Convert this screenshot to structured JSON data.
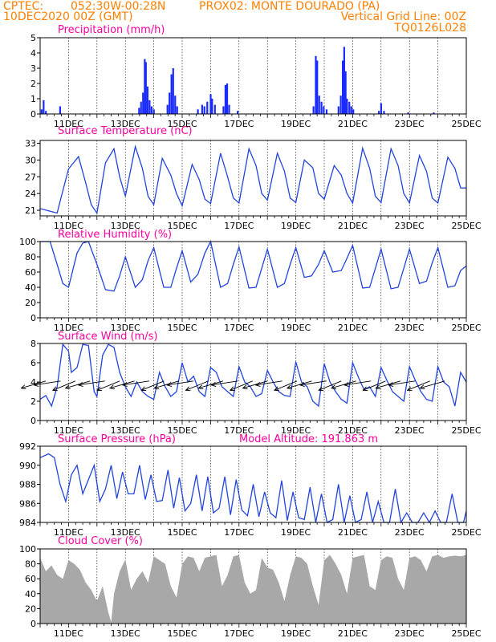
{
  "header": {
    "source": "CPTEC:",
    "location": "052:30W-00:28N",
    "station": "PROX02: MONTE DOURADO (PA)",
    "run": "10DEC2020 00Z (GMT)",
    "grid_note": "Vertical Grid Line: 00Z",
    "code": "TQ0126L028"
  },
  "colors": {
    "header": "#ff8000",
    "title": "#ff00a0",
    "line": "#2244dd",
    "bar": "#1a2bff",
    "cloud": "#a8a8a8",
    "wind_vector": "#000000"
  },
  "x_axis": {
    "tick_labels": [
      "11DEC",
      "13DEC",
      "15DEC",
      "17DEC",
      "19DEC",
      "21DEC",
      "23DEC",
      "25DEC"
    ],
    "tick_days": [
      1,
      3,
      5,
      7,
      9,
      11,
      13,
      15
    ],
    "range_days": [
      0,
      15
    ]
  },
  "chart_data": [
    {
      "type": "bar",
      "title": "Precipitation (mm/h)",
      "ylim": [
        0,
        5
      ],
      "yticks": [
        "0",
        "1",
        "2",
        "3",
        "4",
        "5"
      ],
      "bars": [
        {
          "x": 0.05,
          "y": 0.3
        },
        {
          "x": 0.12,
          "y": 0.9
        },
        {
          "x": 0.2,
          "y": 0.2
        },
        {
          "x": 0.7,
          "y": 0.5
        },
        {
          "x": 3.48,
          "y": 0.4
        },
        {
          "x": 3.55,
          "y": 0.8
        },
        {
          "x": 3.62,
          "y": 1.4
        },
        {
          "x": 3.68,
          "y": 3.6
        },
        {
          "x": 3.72,
          "y": 3.4
        },
        {
          "x": 3.78,
          "y": 1.8
        },
        {
          "x": 3.85,
          "y": 0.9
        },
        {
          "x": 3.92,
          "y": 0.5
        },
        {
          "x": 4.0,
          "y": 0.3
        },
        {
          "x": 4.48,
          "y": 0.6
        },
        {
          "x": 4.55,
          "y": 1.4
        },
        {
          "x": 4.62,
          "y": 2.6
        },
        {
          "x": 4.68,
          "y": 3.0
        },
        {
          "x": 4.75,
          "y": 1.2
        },
        {
          "x": 4.82,
          "y": 0.5
        },
        {
          "x": 5.55,
          "y": 0.3
        },
        {
          "x": 5.7,
          "y": 0.6
        },
        {
          "x": 5.78,
          "y": 0.5
        },
        {
          "x": 5.88,
          "y": 0.8
        },
        {
          "x": 6.0,
          "y": 1.3
        },
        {
          "x": 6.05,
          "y": 1.0
        },
        {
          "x": 6.15,
          "y": 0.6
        },
        {
          "x": 6.45,
          "y": 0.5
        },
        {
          "x": 6.52,
          "y": 1.9
        },
        {
          "x": 6.58,
          "y": 2.0
        },
        {
          "x": 6.65,
          "y": 0.6
        },
        {
          "x": 6.95,
          "y": 0.2
        },
        {
          "x": 9.62,
          "y": 0.5
        },
        {
          "x": 9.7,
          "y": 3.8
        },
        {
          "x": 9.75,
          "y": 3.5
        },
        {
          "x": 9.82,
          "y": 1.2
        },
        {
          "x": 9.9,
          "y": 0.8
        },
        {
          "x": 9.98,
          "y": 0.5
        },
        {
          "x": 10.08,
          "y": 0.3
        },
        {
          "x": 10.5,
          "y": 0.5
        },
        {
          "x": 10.58,
          "y": 1.2
        },
        {
          "x": 10.65,
          "y": 3.5
        },
        {
          "x": 10.7,
          "y": 4.4
        },
        {
          "x": 10.75,
          "y": 2.8
        },
        {
          "x": 10.8,
          "y": 1.0
        },
        {
          "x": 10.88,
          "y": 0.8
        },
        {
          "x": 10.95,
          "y": 0.5
        },
        {
          "x": 11.02,
          "y": 0.3
        },
        {
          "x": 11.92,
          "y": 0.2
        },
        {
          "x": 12.0,
          "y": 0.7
        },
        {
          "x": 12.1,
          "y": 0.2
        },
        {
          "x": 12.95,
          "y": 0.1
        },
        {
          "x": 13.85,
          "y": 0.1
        }
      ]
    },
    {
      "type": "line",
      "title": "Surface Temperature (nC)",
      "ylim": [
        20,
        33.5
      ],
      "yticks": [
        "21",
        "24",
        "27",
        "30",
        "33"
      ],
      "ytick_values": [
        21,
        24,
        27,
        30,
        33
      ],
      "x": [
        0,
        0.3,
        0.6,
        0.75,
        1.0,
        1.35,
        1.6,
        1.8,
        2.0,
        2.3,
        2.6,
        2.8,
        3.0,
        3.35,
        3.6,
        3.8,
        4.0,
        4.3,
        4.6,
        4.8,
        5.0,
        5.35,
        5.6,
        5.8,
        6.0,
        6.35,
        6.6,
        6.8,
        7.0,
        7.35,
        7.6,
        7.8,
        8.0,
        8.35,
        8.6,
        8.8,
        9.0,
        9.3,
        9.6,
        9.8,
        10.0,
        10.35,
        10.6,
        10.8,
        11.0,
        11.35,
        11.6,
        11.8,
        12.0,
        12.35,
        12.6,
        12.8,
        13.0,
        13.35,
        13.6,
        13.8,
        14.0,
        14.35,
        14.6,
        14.8,
        15.0
      ],
      "values": [
        21.3,
        20.9,
        20.5,
        23.5,
        28.4,
        30.6,
        26.0,
        22.0,
        20.5,
        29.5,
        32.0,
        27.0,
        23.5,
        32.4,
        28.5,
        23.5,
        22.0,
        30.3,
        27.3,
        24.0,
        21.8,
        29.2,
        26.5,
        23.0,
        22.2,
        31.2,
        27.0,
        23.2,
        22.3,
        32.0,
        29.0,
        24.0,
        22.8,
        31.2,
        28.0,
        23.2,
        22.4,
        30.0,
        28.6,
        24.0,
        23.0,
        29.0,
        27.3,
        24.0,
        22.3,
        32.1,
        28.5,
        23.5,
        22.4,
        32.0,
        29.0,
        24.0,
        22.3,
        30.8,
        28.0,
        23.2,
        22.3,
        30.5,
        28.5,
        25.0,
        25.0
      ]
    },
    {
      "type": "line",
      "title": "Relative Humidity (%)",
      "ylim": [
        0,
        100
      ],
      "yticks": [
        "0",
        "20",
        "40",
        "60",
        "80",
        "100"
      ],
      "ytick_values": [
        0,
        20,
        40,
        60,
        80,
        100
      ],
      "x": [
        0,
        0.35,
        0.6,
        0.8,
        1.0,
        1.3,
        1.5,
        1.7,
        2.0,
        2.3,
        2.6,
        2.8,
        3.0,
        3.35,
        3.6,
        3.8,
        4.0,
        4.35,
        4.6,
        4.8,
        5.0,
        5.3,
        5.55,
        5.8,
        6.0,
        6.35,
        6.6,
        6.8,
        7.0,
        7.35,
        7.6,
        7.8,
        8.0,
        8.35,
        8.6,
        8.8,
        9.0,
        9.3,
        9.55,
        9.8,
        10.0,
        10.3,
        10.6,
        10.8,
        11.0,
        11.35,
        11.6,
        11.8,
        12.0,
        12.35,
        12.6,
        12.8,
        13.0,
        13.35,
        13.6,
        13.8,
        14.0,
        14.35,
        14.6,
        14.8,
        15.0
      ],
      "values": [
        100,
        100,
        70,
        45,
        40,
        85,
        98,
        100,
        70,
        37,
        35,
        55,
        80,
        40,
        50,
        75,
        92,
        40,
        40,
        65,
        88,
        47,
        57,
        85,
        100,
        40,
        45,
        70,
        93,
        39,
        40,
        65,
        90,
        40,
        45,
        70,
        92,
        53,
        55,
        70,
        88,
        60,
        62,
        78,
        95,
        39,
        40,
        65,
        90,
        38,
        40,
        65,
        90,
        45,
        48,
        72,
        92,
        40,
        42,
        62,
        68
      ]
    },
    {
      "type": "line",
      "title": "Surface Wind (m/s)",
      "ylim": [
        0,
        8
      ],
      "yticks": [
        "0",
        "2",
        "4",
        "6",
        "8"
      ],
      "ytick_values": [
        0,
        2,
        4,
        6,
        8
      ],
      "x": [
        0,
        0.2,
        0.4,
        0.6,
        0.8,
        1.0,
        1.1,
        1.3,
        1.5,
        1.7,
        1.9,
        2.0,
        2.2,
        2.4,
        2.6,
        2.8,
        3.0,
        3.2,
        3.4,
        3.6,
        3.8,
        4.0,
        4.2,
        4.4,
        4.6,
        4.8,
        5.0,
        5.2,
        5.4,
        5.6,
        5.8,
        6.0,
        6.2,
        6.4,
        6.6,
        6.8,
        7.0,
        7.2,
        7.4,
        7.6,
        7.8,
        8.0,
        8.2,
        8.4,
        8.6,
        8.8,
        9.0,
        9.2,
        9.4,
        9.6,
        9.8,
        10.0,
        10.2,
        10.4,
        10.6,
        10.8,
        11.0,
        11.2,
        11.4,
        11.6,
        11.8,
        12.0,
        12.2,
        12.4,
        12.6,
        12.8,
        13.0,
        13.2,
        13.4,
        13.6,
        13.8,
        14.0,
        14.2,
        14.4,
        14.6,
        14.8,
        15.0
      ],
      "values": [
        2.2,
        2.6,
        1.5,
        3.5,
        7.9,
        7.2,
        5.0,
        5.5,
        7.9,
        7.8,
        3.0,
        2.5,
        6.8,
        7.9,
        7.6,
        5.0,
        3.5,
        2.5,
        4.0,
        3.0,
        2.5,
        2.2,
        5.0,
        3.5,
        2.5,
        3.0,
        6.0,
        4.0,
        4.6,
        3.0,
        2.5,
        5.5,
        5.0,
        3.5,
        3.0,
        2.5,
        5.6,
        4.0,
        3.5,
        2.5,
        2.8,
        5.2,
        4.0,
        3.0,
        2.6,
        2.5,
        6.1,
        4.0,
        3.5,
        2.0,
        1.5,
        5.9,
        4.0,
        3.0,
        2.2,
        1.8,
        6.0,
        4.5,
        3.2,
        3.5,
        2.5,
        5.5,
        4.2,
        3.0,
        2.5,
        2.0,
        5.6,
        4.2,
        3.0,
        2.2,
        2.0,
        5.6,
        4.0,
        3.5,
        1.5,
        5.0,
        4.0
      ]
    },
    {
      "type": "line",
      "title": "Surface Pressure (hPa)",
      "annotation": "Model Altitude: 191.863 m",
      "ylim": [
        984,
        992
      ],
      "yticks": [
        "984",
        "986",
        "988",
        "990",
        "992"
      ],
      "ytick_values": [
        984,
        986,
        988,
        990,
        992
      ],
      "x": [
        0,
        0.3,
        0.5,
        0.7,
        0.9,
        1.1,
        1.3,
        1.5,
        1.7,
        1.9,
        2.1,
        2.3,
        2.5,
        2.7,
        2.9,
        3.1,
        3.3,
        3.5,
        3.7,
        3.9,
        4.1,
        4.3,
        4.5,
        4.7,
        4.9,
        5.1,
        5.3,
        5.5,
        5.7,
        5.9,
        6.1,
        6.3,
        6.5,
        6.7,
        6.9,
        7.1,
        7.3,
        7.5,
        7.7,
        7.9,
        8.1,
        8.3,
        8.5,
        8.7,
        8.9,
        9.1,
        9.3,
        9.5,
        9.7,
        9.9,
        10.1,
        10.3,
        10.5,
        10.7,
        10.9,
        11.1,
        11.3,
        11.5,
        11.7,
        11.9,
        12.1,
        12.3,
        12.5,
        12.7,
        12.9,
        13.1,
        13.3,
        13.5,
        13.7,
        13.9,
        14.1,
        14.3,
        14.5,
        14.7,
        14.9,
        15.0
      ],
      "values": [
        990.8,
        991.2,
        990.8,
        988.0,
        986.2,
        989.0,
        990.0,
        987.0,
        988.5,
        990.0,
        986.2,
        987.5,
        990.0,
        986.5,
        989.3,
        987.0,
        987.0,
        990.0,
        986.4,
        989.0,
        986.2,
        986.3,
        989.5,
        985.5,
        988.7,
        985.2,
        986.0,
        989.0,
        985.2,
        988.8,
        985.0,
        985.5,
        988.8,
        984.8,
        988.5,
        985.3,
        984.7,
        988.0,
        984.6,
        987.2,
        985.0,
        984.5,
        988.4,
        984.2,
        987.2,
        984.5,
        984.3,
        987.7,
        984.0,
        987.0,
        984.0,
        984.3,
        988.0,
        984.0,
        986.8,
        984.0,
        984.3,
        987.2,
        984.0,
        986.2,
        984.0,
        984.0,
        987.5,
        984.0,
        985.0,
        984.0,
        984.0,
        985.0,
        984.0,
        985.2,
        984.0,
        984.0,
        987.0,
        984.0,
        983.9,
        985.2
      ]
    },
    {
      "type": "area",
      "title": "Cloud Cover (%)",
      "ylim": [
        0,
        100
      ],
      "yticks": [
        "0",
        "20",
        "40",
        "60",
        "80",
        "100"
      ],
      "ytick_values": [
        0,
        20,
        40,
        60,
        80,
        100
      ],
      "x": [
        0,
        0.2,
        0.4,
        0.6,
        0.8,
        1.0,
        1.2,
        1.4,
        1.6,
        1.8,
        2.0,
        2.2,
        2.4,
        2.5,
        2.6,
        2.8,
        3.0,
        3.2,
        3.4,
        3.6,
        3.8,
        4.0,
        4.2,
        4.4,
        4.6,
        4.8,
        5.0,
        5.2,
        5.4,
        5.6,
        5.8,
        6.0,
        6.2,
        6.4,
        6.6,
        6.8,
        7.0,
        7.2,
        7.4,
        7.6,
        7.8,
        8.0,
        8.2,
        8.4,
        8.6,
        8.8,
        9.0,
        9.2,
        9.4,
        9.6,
        9.8,
        10.0,
        10.2,
        10.4,
        10.6,
        10.8,
        11.0,
        11.2,
        11.4,
        11.6,
        11.8,
        12.0,
        12.2,
        12.4,
        12.6,
        12.8,
        13.0,
        13.2,
        13.4,
        13.6,
        13.8,
        14.0,
        14.2,
        14.4,
        14.6,
        14.8,
        15.0
      ],
      "values": [
        88,
        70,
        78,
        65,
        60,
        85,
        80,
        72,
        55,
        45,
        30,
        50,
        15,
        2,
        40,
        70,
        86,
        45,
        60,
        70,
        55,
        90,
        85,
        80,
        50,
        35,
        80,
        90,
        88,
        70,
        88,
        90,
        92,
        50,
        65,
        90,
        92,
        55,
        40,
        45,
        88,
        75,
        72,
        55,
        30,
        65,
        90,
        88,
        80,
        50,
        25,
        85,
        92,
        80,
        65,
        40,
        88,
        90,
        92,
        50,
        45,
        85,
        90,
        88,
        60,
        45,
        88,
        90,
        85,
        70,
        90,
        92,
        88,
        90,
        91,
        90,
        92
      ]
    }
  ]
}
